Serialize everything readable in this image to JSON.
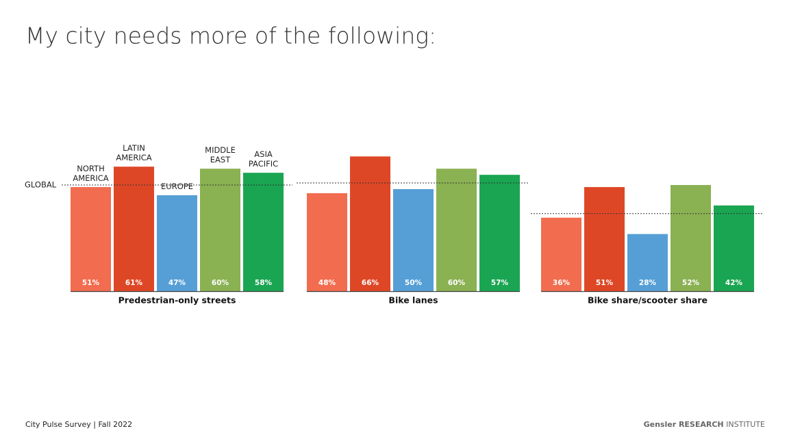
{
  "chart_data": {
    "type": "grouped-bar",
    "title": "My city needs more of the following:",
    "categories": [
      "Predestrian-only streets",
      "Bike lanes",
      "Bike share/scooter share"
    ],
    "series": [
      {
        "name": "NORTH AMERICA",
        "color": "#f26c4f",
        "values": [
          51,
          48,
          36
        ],
        "value_labels": [
          "51%",
          "48%",
          "36%"
        ]
      },
      {
        "name": "LATIN AMERICA",
        "color": "#de4726",
        "values": [
          61,
          66,
          51
        ],
        "value_labels": [
          "61%",
          "66%",
          "51%"
        ]
      },
      {
        "name": "EUROPE",
        "color": "#559fd6",
        "values": [
          47,
          50,
          28
        ],
        "value_labels": [
          "47%",
          "50%",
          "28%"
        ]
      },
      {
        "name": "MIDDLE EAST",
        "color": "#8ab152",
        "values": [
          60,
          60,
          52
        ],
        "value_labels": [
          "60%",
          "60%",
          "52%"
        ]
      },
      {
        "name": "ASIA PACIFIC",
        "color": "#1aa552",
        "values": [
          58,
          57,
          42
        ],
        "value_labels": [
          "58%",
          "57%",
          "42%"
        ]
      }
    ],
    "global": {
      "label": "GLOBAL",
      "values": [
        52,
        53,
        38
      ]
    },
    "ylim": [
      0,
      100
    ]
  },
  "footer": {
    "source": "City Pulse Survey | Fall 2022",
    "brand": "Gensler RESEARCH",
    "brand_suffix": "INSTITUTE"
  }
}
